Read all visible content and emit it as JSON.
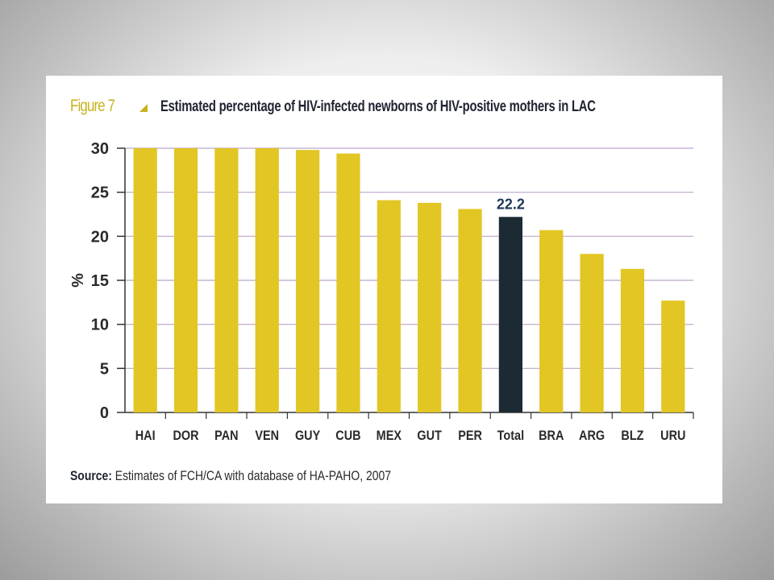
{
  "figure_label": "Figure 7",
  "title": "Estimated percentage of HIV-infected newborns of HIV-positive mothers in LAC",
  "source_prefix": "Source:",
  "source_text": "Estimates of FCH/CA with database of HA-PAHO, 2007",
  "colors": {
    "bar": "#e2c623",
    "highlight": "#1c2a33",
    "grid": "#b9a6cc",
    "accent": "#c8b21e"
  },
  "chart_data": {
    "type": "bar",
    "title": "Estimated percentage of HIV-infected newborns of HIV-positive mothers in LAC",
    "xlabel": "",
    "ylabel": "%",
    "ylim": [
      0,
      30
    ],
    "yticks": [
      0,
      5,
      10,
      15,
      20,
      25,
      30
    ],
    "grid": true,
    "categories": [
      "HAI",
      "DOR",
      "PAN",
      "VEN",
      "GUY",
      "CUB",
      "MEX",
      "GUT",
      "PER",
      "Total",
      "BRA",
      "ARG",
      "BLZ",
      "URU"
    ],
    "values": [
      30,
      30,
      30,
      30,
      29.8,
      29.4,
      24.1,
      23.8,
      23.1,
      22.2,
      20.7,
      18.0,
      16.3,
      12.7
    ],
    "highlight_category": "Total",
    "data_labels": [
      {
        "category": "Total",
        "text": "22.2"
      }
    ]
  }
}
